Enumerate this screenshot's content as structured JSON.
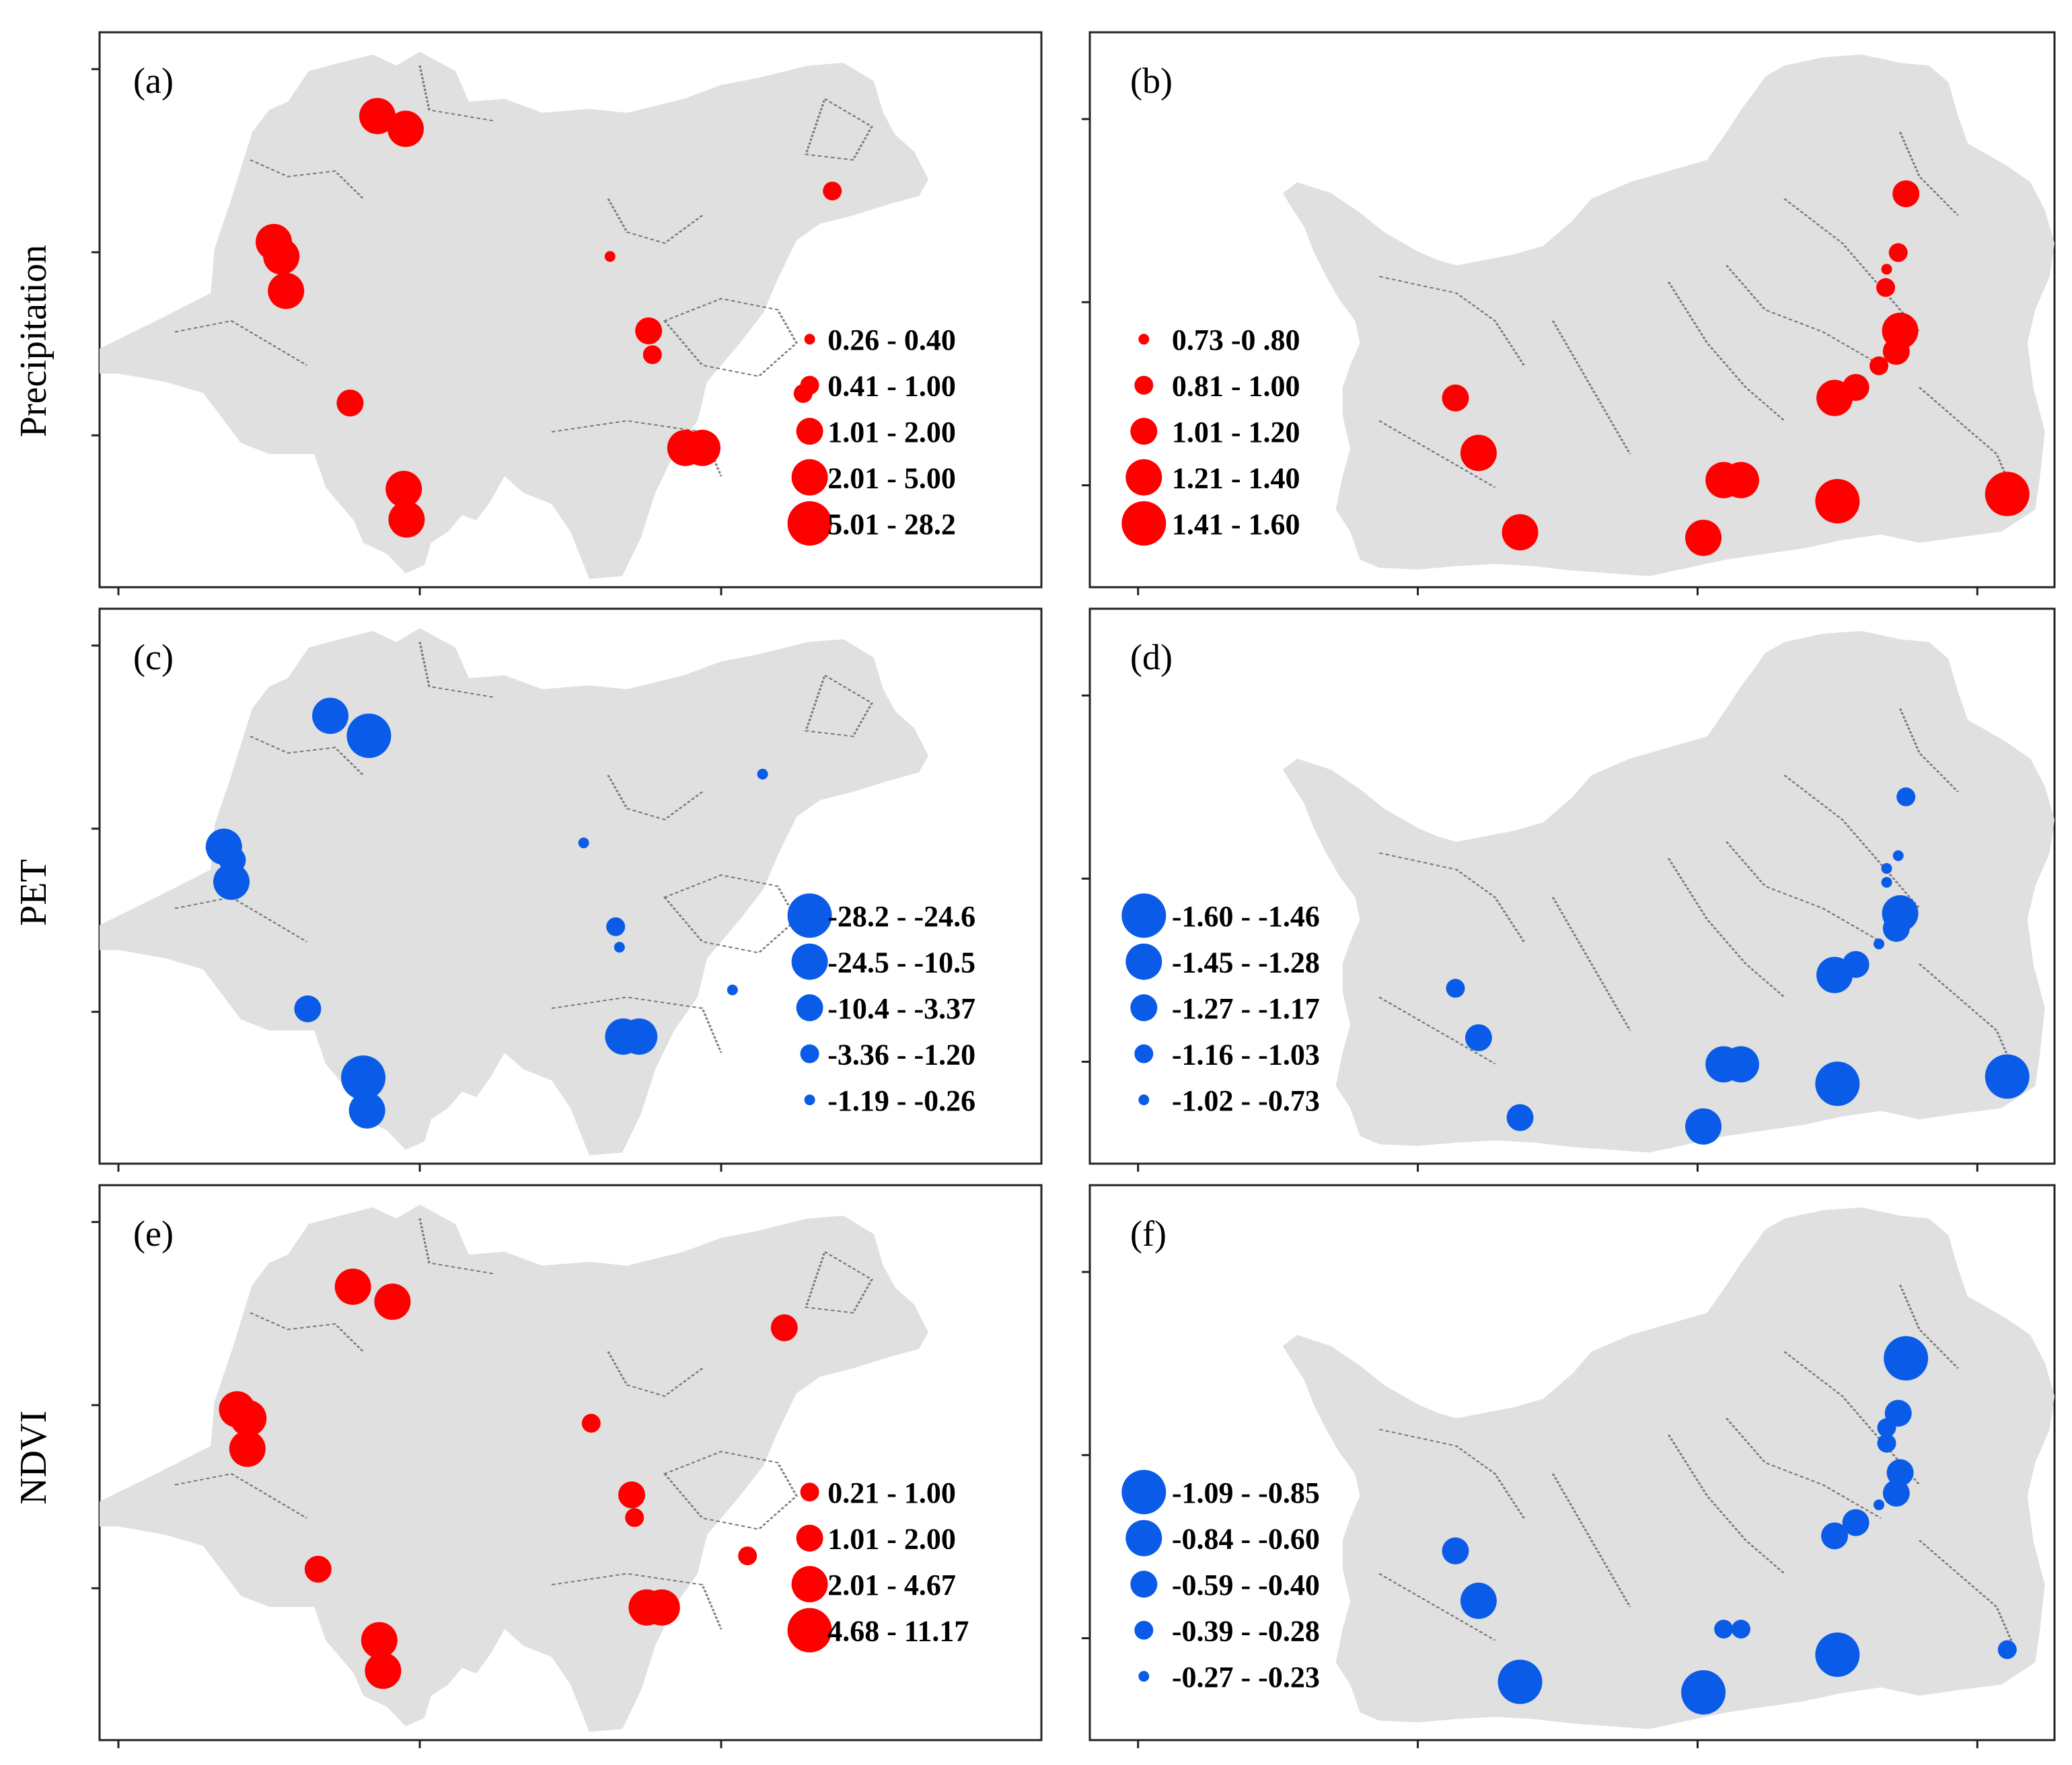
{
  "row_titles": [
    "Precipitation",
    "PET",
    "NDVI"
  ],
  "colors": {
    "positive": "#ff0000",
    "negative": "#0a5ce8",
    "basin": "#e0e0e0",
    "boundary": "#7a7a7a"
  },
  "panels": [
    {
      "label": "(a)",
      "map": "left",
      "color": "red",
      "legend": [
        {
          "label": "0.26 - 0.40",
          "size": 1
        },
        {
          "label": "0.41 - 1.00",
          "size": 2
        },
        {
          "label": "1.01 - 2.00",
          "size": 3
        },
        {
          "label": "2.01 - 5.00",
          "size": 4
        },
        {
          "label": "5.01 - 28.2",
          "size": 5
        }
      ],
      "points": [
        {
          "x": 0.295,
          "y": 0.151,
          "size": 4
        },
        {
          "x": 0.325,
          "y": 0.174,
          "size": 4
        },
        {
          "x": 0.185,
          "y": 0.378,
          "size": 4
        },
        {
          "x": 0.193,
          "y": 0.404,
          "size": 4
        },
        {
          "x": 0.198,
          "y": 0.466,
          "size": 4
        },
        {
          "x": 0.266,
          "y": 0.668,
          "size": 3
        },
        {
          "x": 0.323,
          "y": 0.823,
          "size": 4
        },
        {
          "x": 0.326,
          "y": 0.878,
          "size": 4
        },
        {
          "x": 0.542,
          "y": 0.404,
          "size": 1
        },
        {
          "x": 0.583,
          "y": 0.538,
          "size": 3
        },
        {
          "x": 0.587,
          "y": 0.581,
          "size": 2
        },
        {
          "x": 0.622,
          "y": 0.749,
          "size": 4
        },
        {
          "x": 0.64,
          "y": 0.749,
          "size": 4
        },
        {
          "x": 0.778,
          "y": 0.286,
          "size": 2
        },
        {
          "x": 0.747,
          "y": 0.651,
          "size": 2
        }
      ]
    },
    {
      "label": "(b)",
      "map": "right",
      "color": "red",
      "legend": [
        {
          "label": "0.73 -0 .80",
          "size": 1
        },
        {
          "label": "0.81 - 1.00",
          "size": 2
        },
        {
          "label": "1.01 - 1.20",
          "size": 3
        },
        {
          "label": "1.21 - 1.40",
          "size": 4
        },
        {
          "label": "1.41 - 1.60",
          "size": 5
        }
      ],
      "points": [
        {
          "x": 0.846,
          "y": 0.291,
          "size": 3
        },
        {
          "x": 0.838,
          "y": 0.397,
          "size": 2
        },
        {
          "x": 0.826,
          "y": 0.427,
          "size": 1
        },
        {
          "x": 0.825,
          "y": 0.46,
          "size": 2
        },
        {
          "x": 0.84,
          "y": 0.538,
          "size": 4
        },
        {
          "x": 0.836,
          "y": 0.575,
          "size": 3
        },
        {
          "x": 0.818,
          "y": 0.601,
          "size": 2
        },
        {
          "x": 0.794,
          "y": 0.64,
          "size": 3
        },
        {
          "x": 0.772,
          "y": 0.659,
          "size": 4
        },
        {
          "x": 0.379,
          "y": 0.659,
          "size": 3
        },
        {
          "x": 0.403,
          "y": 0.758,
          "size": 4
        },
        {
          "x": 0.446,
          "y": 0.901,
          "size": 4
        },
        {
          "x": 0.636,
          "y": 0.911,
          "size": 4
        },
        {
          "x": 0.657,
          "y": 0.807,
          "size": 4
        },
        {
          "x": 0.675,
          "y": 0.807,
          "size": 4
        },
        {
          "x": 0.775,
          "y": 0.845,
          "size": 5
        },
        {
          "x": 0.951,
          "y": 0.832,
          "size": 5
        }
      ]
    },
    {
      "label": "(c)",
      "map": "left",
      "color": "blue",
      "legend": [
        {
          "label": "-28.2 - -24.6",
          "size": 5
        },
        {
          "label": "-24.5 - -10.5",
          "size": 4
        },
        {
          "label": "-10.4 - -3.37",
          "size": 3
        },
        {
          "label": "-3.36 - -1.20",
          "size": 2
        },
        {
          "label": "-1.19 - -0.26",
          "size": 1
        }
      ],
      "points": [
        {
          "x": 0.245,
          "y": 0.193,
          "size": 4
        },
        {
          "x": 0.286,
          "y": 0.229,
          "size": 5
        },
        {
          "x": 0.132,
          "y": 0.429,
          "size": 4
        },
        {
          "x": 0.141,
          "y": 0.453,
          "size": 3
        },
        {
          "x": 0.14,
          "y": 0.492,
          "size": 4
        },
        {
          "x": 0.221,
          "y": 0.721,
          "size": 3
        },
        {
          "x": 0.28,
          "y": 0.845,
          "size": 5
        },
        {
          "x": 0.284,
          "y": 0.904,
          "size": 4
        },
        {
          "x": 0.514,
          "y": 0.422,
          "size": 1
        },
        {
          "x": 0.548,
          "y": 0.573,
          "size": 2
        },
        {
          "x": 0.552,
          "y": 0.61,
          "size": 1
        },
        {
          "x": 0.556,
          "y": 0.771,
          "size": 4
        },
        {
          "x": 0.573,
          "y": 0.771,
          "size": 4
        },
        {
          "x": 0.704,
          "y": 0.298,
          "size": 1
        },
        {
          "x": 0.672,
          "y": 0.687,
          "size": 1
        }
      ]
    },
    {
      "label": "(d)",
      "map": "right",
      "color": "blue",
      "legend": [
        {
          "label": "-1.60 - -1.46",
          "size": 5
        },
        {
          "label": "-1.45 - -1.28",
          "size": 4
        },
        {
          "label": "-1.27 - -1.17",
          "size": 3
        },
        {
          "label": "-1.16 - -1.03",
          "size": 2
        },
        {
          "label": "-1.02 - -0.73",
          "size": 1
        }
      ],
      "points": [
        {
          "x": 0.846,
          "y": 0.339,
          "size": 2
        },
        {
          "x": 0.838,
          "y": 0.445,
          "size": 1
        },
        {
          "x": 0.826,
          "y": 0.468,
          "size": 1
        },
        {
          "x": 0.826,
          "y": 0.493,
          "size": 1
        },
        {
          "x": 0.84,
          "y": 0.549,
          "size": 4
        },
        {
          "x": 0.836,
          "y": 0.576,
          "size": 3
        },
        {
          "x": 0.818,
          "y": 0.604,
          "size": 1
        },
        {
          "x": 0.794,
          "y": 0.641,
          "size": 3
        },
        {
          "x": 0.772,
          "y": 0.66,
          "size": 4
        },
        {
          "x": 0.379,
          "y": 0.684,
          "size": 2
        },
        {
          "x": 0.403,
          "y": 0.773,
          "size": 3
        },
        {
          "x": 0.446,
          "y": 0.917,
          "size": 3
        },
        {
          "x": 0.636,
          "y": 0.933,
          "size": 4
        },
        {
          "x": 0.657,
          "y": 0.821,
          "size": 4
        },
        {
          "x": 0.675,
          "y": 0.821,
          "size": 4
        },
        {
          "x": 0.775,
          "y": 0.856,
          "size": 5
        },
        {
          "x": 0.951,
          "y": 0.843,
          "size": 5
        }
      ]
    },
    {
      "label": "(e)",
      "map": "left",
      "color": "red",
      "legend": [
        {
          "label": "0.21 - 1.00",
          "size": 2
        },
        {
          "label": "1.01 - 2.00",
          "size": 3
        },
        {
          "label": "2.01 - 4.67",
          "size": 4
        },
        {
          "label": "4.68 - 11.17",
          "size": 5
        }
      ],
      "points": [
        {
          "x": 0.269,
          "y": 0.183,
          "size": 4
        },
        {
          "x": 0.311,
          "y": 0.21,
          "size": 4
        },
        {
          "x": 0.146,
          "y": 0.404,
          "size": 4
        },
        {
          "x": 0.158,
          "y": 0.42,
          "size": 4
        },
        {
          "x": 0.157,
          "y": 0.475,
          "size": 4
        },
        {
          "x": 0.232,
          "y": 0.692,
          "size": 3
        },
        {
          "x": 0.297,
          "y": 0.82,
          "size": 4
        },
        {
          "x": 0.301,
          "y": 0.875,
          "size": 4
        },
        {
          "x": 0.522,
          "y": 0.429,
          "size": 2
        },
        {
          "x": 0.565,
          "y": 0.558,
          "size": 3
        },
        {
          "x": 0.568,
          "y": 0.599,
          "size": 2
        },
        {
          "x": 0.581,
          "y": 0.761,
          "size": 4
        },
        {
          "x": 0.597,
          "y": 0.761,
          "size": 4
        },
        {
          "x": 0.727,
          "y": 0.257,
          "size": 3
        },
        {
          "x": 0.688,
          "y": 0.668,
          "size": 2
        }
      ]
    },
    {
      "label": "(f)",
      "map": "right",
      "color": "blue",
      "legend": [
        {
          "label": "-1.09 - -0.85",
          "size": 5
        },
        {
          "label": "-0.84 - -0.60",
          "size": 4
        },
        {
          "label": "-0.59 - -0.40",
          "size": 3
        },
        {
          "label": "-0.39 - -0.28",
          "size": 2
        },
        {
          "label": "-0.27 - -0.23",
          "size": 1
        }
      ],
      "points": [
        {
          "x": 0.846,
          "y": 0.312,
          "size": 5
        },
        {
          "x": 0.838,
          "y": 0.411,
          "size": 3
        },
        {
          "x": 0.826,
          "y": 0.437,
          "size": 2
        },
        {
          "x": 0.826,
          "y": 0.465,
          "size": 2
        },
        {
          "x": 0.84,
          "y": 0.518,
          "size": 3
        },
        {
          "x": 0.836,
          "y": 0.555,
          "size": 3
        },
        {
          "x": 0.818,
          "y": 0.576,
          "size": 1
        },
        {
          "x": 0.794,
          "y": 0.608,
          "size": 3
        },
        {
          "x": 0.772,
          "y": 0.632,
          "size": 3
        },
        {
          "x": 0.379,
          "y": 0.659,
          "size": 3
        },
        {
          "x": 0.403,
          "y": 0.749,
          "size": 4
        },
        {
          "x": 0.446,
          "y": 0.895,
          "size": 5
        },
        {
          "x": 0.636,
          "y": 0.914,
          "size": 5
        },
        {
          "x": 0.657,
          "y": 0.8,
          "size": 2
        },
        {
          "x": 0.675,
          "y": 0.8,
          "size": 2
        },
        {
          "x": 0.775,
          "y": 0.846,
          "size": 5
        },
        {
          "x": 0.951,
          "y": 0.837,
          "size": 2
        }
      ]
    }
  ]
}
